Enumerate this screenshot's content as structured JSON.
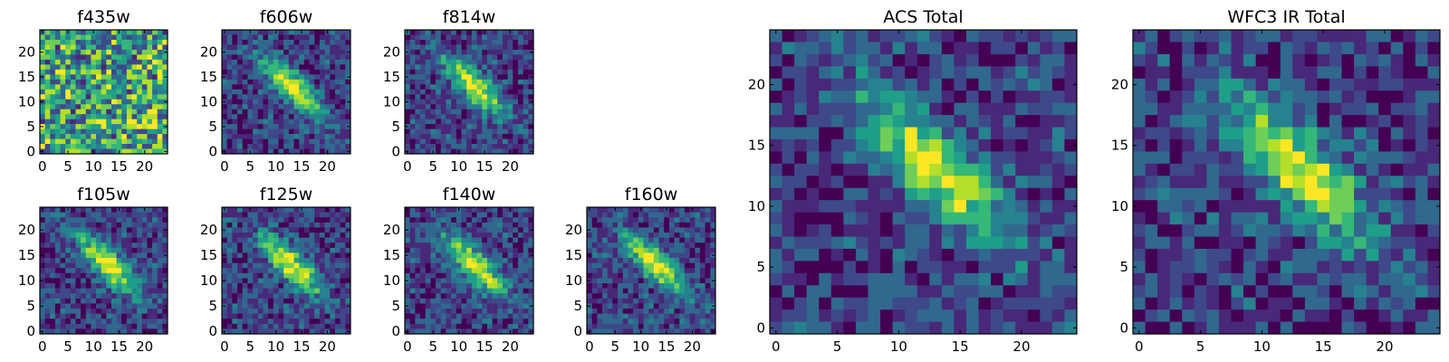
{
  "chart_data": [
    {
      "type": "heatmap",
      "title": "f435w",
      "xticks": [
        0,
        5,
        10,
        15,
        20
      ],
      "yticks": [
        0,
        5,
        10,
        15,
        20
      ],
      "grid_size": 25,
      "grid": false,
      "colormap": "viridis",
      "pattern": "noise"
    },
    {
      "type": "heatmap",
      "title": "f606w",
      "xticks": [
        0,
        5,
        10,
        15,
        20
      ],
      "yticks": [
        0,
        5,
        10,
        15,
        20
      ],
      "grid_size": 25,
      "grid": false,
      "colormap": "viridis",
      "pattern": "diagonal"
    },
    {
      "type": "heatmap",
      "title": "f814w",
      "xticks": [
        0,
        5,
        10,
        15,
        20
      ],
      "yticks": [
        0,
        5,
        10,
        15,
        20
      ],
      "grid_size": 25,
      "grid": false,
      "colormap": "viridis",
      "pattern": "diagonal"
    },
    {
      "type": "heatmap",
      "title": "f105w",
      "xticks": [
        0,
        5,
        10,
        15,
        20
      ],
      "yticks": [
        0,
        5,
        10,
        15,
        20
      ],
      "grid_size": 25,
      "grid": false,
      "colormap": "viridis",
      "pattern": "diagonal"
    },
    {
      "type": "heatmap",
      "title": "f125w",
      "xticks": [
        0,
        5,
        10,
        15,
        20
      ],
      "yticks": [
        0,
        5,
        10,
        15,
        20
      ],
      "grid_size": 25,
      "grid": false,
      "colormap": "viridis",
      "pattern": "diagonal"
    },
    {
      "type": "heatmap",
      "title": "f140w",
      "xticks": [
        0,
        5,
        10,
        15,
        20
      ],
      "yticks": [
        0,
        5,
        10,
        15,
        20
      ],
      "grid_size": 25,
      "grid": false,
      "colormap": "viridis",
      "pattern": "diagonal"
    },
    {
      "type": "heatmap",
      "title": "f160w",
      "xticks": [
        0,
        5,
        10,
        15,
        20
      ],
      "yticks": [
        0,
        5,
        10,
        15,
        20
      ],
      "grid_size": 25,
      "grid": false,
      "colormap": "viridis",
      "pattern": "diagonal"
    },
    {
      "type": "heatmap",
      "title": "ACS Total",
      "xticks": [
        0,
        5,
        10,
        15,
        20
      ],
      "yticks": [
        0,
        5,
        10,
        15,
        20
      ],
      "grid_size": 25,
      "grid": false,
      "colormap": "viridis",
      "pattern": "diagonal"
    },
    {
      "type": "heatmap",
      "title": "WFC3 IR Total",
      "xticks": [
        0,
        5,
        10,
        15,
        20
      ],
      "yticks": [
        0,
        5,
        10,
        15,
        20
      ],
      "grid_size": 25,
      "grid": false,
      "colormap": "viridis",
      "pattern": "diagonal"
    }
  ],
  "colors": {
    "viridis": [
      "#440154",
      "#482878",
      "#3e4989",
      "#31688e",
      "#26828e",
      "#1f9e89",
      "#35b779",
      "#6ece58",
      "#b5de2b",
      "#fde725"
    ],
    "axis": "#000000",
    "background": "#ffffff"
  }
}
